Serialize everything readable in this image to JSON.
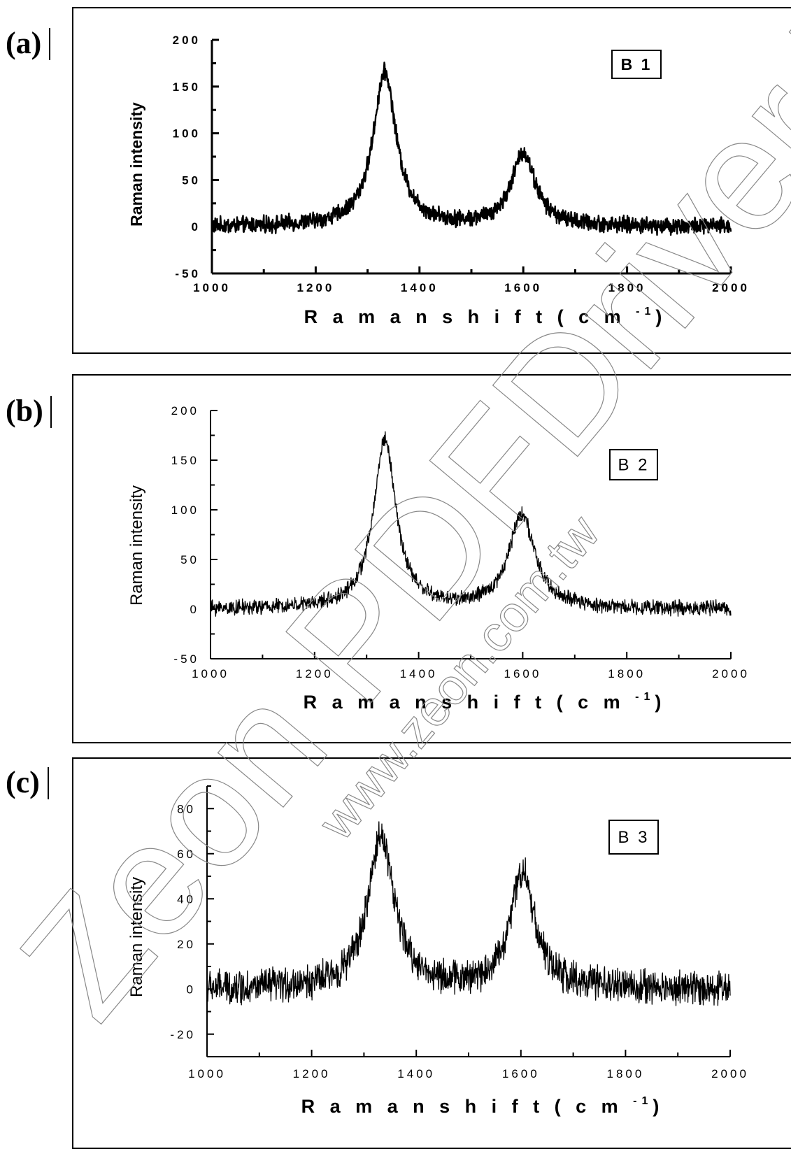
{
  "panels": [
    {
      "letter": "(a)"
    },
    {
      "letter": "(b)"
    },
    {
      "letter": "(c)"
    }
  ],
  "watermark": {
    "main": "Zeon PDFDriver Trial",
    "url": "www.zeon.com.tw"
  },
  "chart_data": [
    {
      "type": "line",
      "legend": "B 1",
      "legend_position": "top-right",
      "xlabel": "R a m a n   s h i f t   ( c m",
      "xlabel_sup": "-1",
      "xlabel_close": ")",
      "ylabel": "Raman intensity",
      "xlim": [
        1000,
        2000
      ],
      "ylim": [
        -50,
        200
      ],
      "xticks": [
        "1000",
        "1200",
        "1400",
        "1600",
        "1800",
        "2000"
      ],
      "yticks": [
        "-50",
        "0",
        "50",
        "100",
        "150",
        "200"
      ],
      "peaks": [
        {
          "center": 1333,
          "height": 165,
          "width": 27
        },
        {
          "center": 1600,
          "height": 78,
          "width": 28
        }
      ],
      "noise": 7,
      "baseline": 0
    },
    {
      "type": "line",
      "legend": "B 2",
      "legend_position": "top-right",
      "xlabel": "R a m a n   s h i f t   ( c m",
      "xlabel_sup": "-1",
      "xlabel_close": ")",
      "ylabel": "Raman intensity",
      "xlim": [
        1000,
        2000
      ],
      "ylim": [
        -50,
        200
      ],
      "xticks": [
        "1000",
        "1200",
        "1400",
        "1600",
        "1800",
        "2000"
      ],
      "yticks": [
        "-50",
        "0",
        "50",
        "100",
        "150",
        "200"
      ],
      "peaks": [
        {
          "center": 1335,
          "height": 170,
          "width": 26
        },
        {
          "center": 1598,
          "height": 95,
          "width": 30
        }
      ],
      "noise": 6,
      "baseline": 0
    },
    {
      "type": "line",
      "legend": "B 3",
      "legend_position": "top-right",
      "xlabel": "R a m a n   s h i f t   ( c m",
      "xlabel_sup": "-1",
      "xlabel_close": ")",
      "ylabel": "Raman intensity",
      "xlim": [
        1000,
        2000
      ],
      "ylim": [
        -30,
        90
      ],
      "xticks": [
        "1000",
        "1200",
        "1400",
        "1600",
        "1800",
        "2000"
      ],
      "yticks": [
        "-20",
        "0",
        "20",
        "40",
        "60",
        "80"
      ],
      "peaks": [
        {
          "center": 1333,
          "height": 68,
          "width": 30
        },
        {
          "center": 1603,
          "height": 52,
          "width": 28
        }
      ],
      "noise": 6,
      "baseline": 0
    }
  ]
}
